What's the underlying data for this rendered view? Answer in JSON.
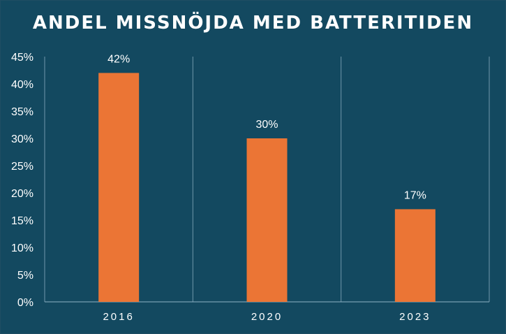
{
  "chart_data": {
    "type": "bar",
    "title": "ANDEL MISSNÖJDA MED BATTERITIDEN",
    "categories": [
      "2016",
      "2020",
      "2023"
    ],
    "values": [
      42,
      30,
      17
    ],
    "data_labels": [
      "42%",
      "30%",
      "17%"
    ],
    "ylim": [
      0,
      45
    ],
    "yticks": [
      0,
      5,
      10,
      15,
      20,
      25,
      30,
      35,
      40,
      45
    ],
    "ytick_labels": [
      "0%",
      "5%",
      "10%",
      "15%",
      "20%",
      "25%",
      "30%",
      "35%",
      "40%",
      "45%"
    ],
    "grid": "vertical separators between categories",
    "colors": {
      "background": "#134960",
      "bar": "#EB7535",
      "text": "#FFFFFF",
      "axis": "#8FB3C4"
    }
  }
}
